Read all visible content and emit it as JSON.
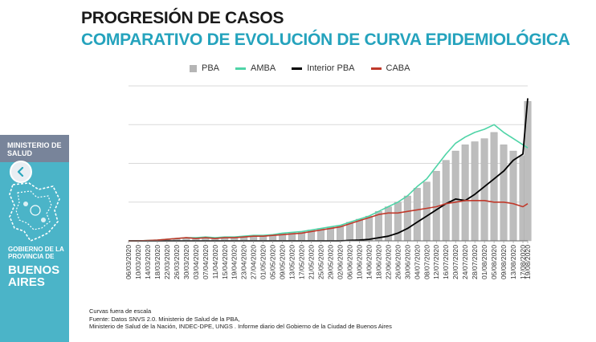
{
  "header": {
    "title": "PROGRESIÓN DE CASOS",
    "subtitle": "COMPARATIVO DE EVOLUCIÓN DE CURVA EPIDEMIOLÓGICA"
  },
  "sidebar": {
    "ministry": "MINISTERIO DE SALUD",
    "government": "GOBIERNO DE LA PROVINCIA DE",
    "province": "BUENOS AIRES"
  },
  "icons": {
    "nav_back": "chevron-left-icon",
    "emblem": "buenos-aires-map-emblem-icon"
  },
  "footnotes": {
    "scale_note": "Curvas fuera de escala",
    "source_line1": "Fuente: Datos SNVS 2.0. Ministerio de Salud de la PBA,",
    "source_line2": "Ministerio de Salud de la Nación, INDEC-DPE, UNGS . Informe diario del Gobierno de la Ciudad de Buenos Aires"
  },
  "colors": {
    "pba": "#b5b5b5",
    "amba": "#4fd4a7",
    "interior_pba": "#000000",
    "caba": "#c0392b",
    "accent": "#25a3bd",
    "sidebar": "#4bb4c8"
  },
  "chart_data": {
    "type": "bar",
    "title": "",
    "xlabel": "",
    "ylabel": "",
    "note": "Curvas fuera de escala",
    "grid": true,
    "ylim": [
      0,
      100
    ],
    "legend_position": "top",
    "x_start": "2020-03-06",
    "x_end": "2020-08-19",
    "tick_labels": [
      "06/03/2020",
      "10/03/2020",
      "14/03/2020",
      "18/03/2020",
      "22/03/2020",
      "26/03/2020",
      "30/03/2020",
      "03/04/2020",
      "07/04/2020",
      "11/04/2020",
      "15/04/2020",
      "19/04/2020",
      "23/04/2020",
      "27/04/2020",
      "01/05/2020",
      "05/05/2020",
      "09/05/2020",
      "13/05/2020",
      "17/05/2020",
      "21/05/2020",
      "25/05/2020",
      "29/05/2020",
      "02/06/2020",
      "06/06/2020",
      "10/06/2020",
      "14/06/2020",
      "18/06/2020",
      "22/06/2020",
      "26/06/2020",
      "30/06/2020",
      "04/07/2020",
      "08/07/2020",
      "12/07/2020",
      "16/07/2020",
      "20/07/2020",
      "24/07/2020",
      "28/07/2020",
      "01/08/2020",
      "05/08/2020",
      "09/08/2020",
      "13/08/2020",
      "17/08/2020",
      "19/08/2020"
    ],
    "series": [
      {
        "name": "PBA",
        "type": "bar",
        "x": [
          "06/03/2020",
          "10/03/2020",
          "14/03/2020",
          "18/03/2020",
          "22/03/2020",
          "26/03/2020",
          "30/03/2020",
          "03/04/2020",
          "07/04/2020",
          "11/04/2020",
          "15/04/2020",
          "19/04/2020",
          "23/04/2020",
          "27/04/2020",
          "01/05/2020",
          "05/05/2020",
          "09/05/2020",
          "13/05/2020",
          "17/05/2020",
          "21/05/2020",
          "25/05/2020",
          "29/05/2020",
          "02/06/2020",
          "06/06/2020",
          "10/06/2020",
          "14/06/2020",
          "18/06/2020",
          "22/06/2020",
          "26/06/2020",
          "30/06/2020",
          "04/07/2020",
          "08/07/2020",
          "12/07/2020",
          "16/07/2020",
          "20/07/2020",
          "24/07/2020",
          "28/07/2020",
          "01/08/2020",
          "05/08/2020",
          "09/08/2020",
          "13/08/2020",
          "17/08/2020",
          "19/08/2020"
        ],
        "values": [
          0,
          0,
          0.2,
          0.5,
          1,
          1.5,
          2,
          2,
          2.5,
          2,
          2.5,
          2.5,
          3,
          3.5,
          3.5,
          4,
          5,
          5.5,
          6,
          7,
          8,
          9,
          10,
          12,
          14,
          16,
          19,
          22,
          25,
          29,
          34,
          38,
          45,
          52,
          58,
          62,
          64,
          66,
          70,
          62,
          58,
          55,
          90
        ]
      },
      {
        "name": "AMBA",
        "type": "line",
        "x": [
          "06/03/2020",
          "10/03/2020",
          "14/03/2020",
          "18/03/2020",
          "22/03/2020",
          "26/03/2020",
          "30/03/2020",
          "03/04/2020",
          "07/04/2020",
          "11/04/2020",
          "15/04/2020",
          "19/04/2020",
          "23/04/2020",
          "27/04/2020",
          "01/05/2020",
          "05/05/2020",
          "09/05/2020",
          "13/05/2020",
          "17/05/2020",
          "21/05/2020",
          "25/05/2020",
          "29/05/2020",
          "02/06/2020",
          "06/06/2020",
          "10/06/2020",
          "14/06/2020",
          "18/06/2020",
          "22/06/2020",
          "26/06/2020",
          "30/06/2020",
          "04/07/2020",
          "08/07/2020",
          "12/07/2020",
          "16/07/2020",
          "20/07/2020",
          "24/07/2020",
          "28/07/2020",
          "01/08/2020",
          "05/08/2020",
          "09/08/2020",
          "13/08/2020",
          "17/08/2020",
          "19/08/2020"
        ],
        "values": [
          0,
          0,
          0.2,
          0.5,
          1,
          1.5,
          2,
          2,
          2.5,
          2,
          2.5,
          2.5,
          3,
          3.5,
          3.5,
          4,
          5,
          5.5,
          6,
          7,
          8,
          9,
          10,
          12,
          14,
          16,
          19,
          22,
          25,
          29,
          35,
          40,
          48,
          56,
          63,
          67,
          70,
          72,
          75,
          70,
          66,
          62,
          60
        ]
      },
      {
        "name": "Interior PBA",
        "type": "line",
        "x": [
          "06/03/2020",
          "10/03/2020",
          "14/03/2020",
          "18/03/2020",
          "22/03/2020",
          "26/03/2020",
          "30/03/2020",
          "03/04/2020",
          "07/04/2020",
          "11/04/2020",
          "15/04/2020",
          "19/04/2020",
          "23/04/2020",
          "27/04/2020",
          "01/05/2020",
          "05/05/2020",
          "09/05/2020",
          "13/05/2020",
          "17/05/2020",
          "21/05/2020",
          "25/05/2020",
          "29/05/2020",
          "02/06/2020",
          "06/06/2020",
          "10/06/2020",
          "14/06/2020",
          "18/06/2020",
          "22/06/2020",
          "26/06/2020",
          "30/06/2020",
          "04/07/2020",
          "08/07/2020",
          "12/07/2020",
          "16/07/2020",
          "20/07/2020",
          "24/07/2020",
          "28/07/2020",
          "01/08/2020",
          "05/08/2020",
          "09/08/2020",
          "13/08/2020",
          "17/08/2020",
          "19/08/2020"
        ],
        "values": [
          0,
          0,
          0,
          0,
          0,
          0,
          0,
          0,
          0,
          0,
          0,
          0,
          0,
          0,
          0,
          0,
          0,
          0,
          0,
          0,
          0,
          0,
          0,
          0.3,
          0.5,
          1,
          2,
          3,
          5,
          8,
          12,
          16,
          20,
          24,
          27,
          26,
          30,
          35,
          40,
          45,
          52,
          56,
          92
        ]
      },
      {
        "name": "CABA",
        "type": "line",
        "x": [
          "06/03/2020",
          "10/03/2020",
          "14/03/2020",
          "18/03/2020",
          "22/03/2020",
          "26/03/2020",
          "30/03/2020",
          "03/04/2020",
          "07/04/2020",
          "11/04/2020",
          "15/04/2020",
          "19/04/2020",
          "23/04/2020",
          "27/04/2020",
          "01/05/2020",
          "05/05/2020",
          "09/05/2020",
          "13/05/2020",
          "17/05/2020",
          "21/05/2020",
          "25/05/2020",
          "29/05/2020",
          "02/06/2020",
          "06/06/2020",
          "10/06/2020",
          "14/06/2020",
          "18/06/2020",
          "22/06/2020",
          "26/06/2020",
          "30/06/2020",
          "04/07/2020",
          "08/07/2020",
          "12/07/2020",
          "16/07/2020",
          "20/07/2020",
          "24/07/2020",
          "28/07/2020",
          "01/08/2020",
          "05/08/2020",
          "09/08/2020",
          "13/08/2020",
          "17/08/2020",
          "19/08/2020"
        ],
        "values": [
          0,
          0,
          0.2,
          0.5,
          1,
          1.5,
          2,
          1.5,
          2,
          1.5,
          2,
          2,
          2.5,
          3,
          3,
          3.5,
          4,
          4.5,
          5,
          6,
          7,
          8,
          9,
          11,
          13,
          15,
          17,
          18,
          18,
          19,
          20,
          21,
          22,
          24,
          25,
          26,
          26,
          26,
          25,
          25,
          24,
          22,
          24
        ]
      }
    ],
    "legend": [
      "PBA",
      "AMBA",
      "Interior PBA",
      "CABA"
    ]
  }
}
